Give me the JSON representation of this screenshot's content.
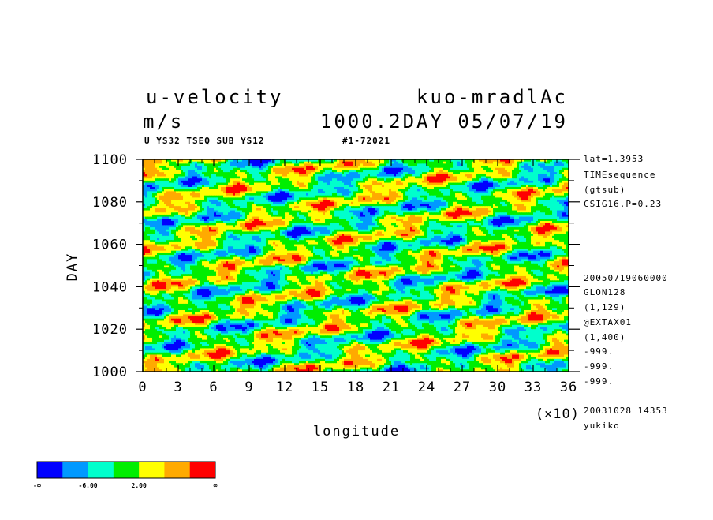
{
  "header": {
    "title_left": "u-velocity",
    "title_right": "kuo-mradlAc",
    "units": "m/s",
    "time_info": "1000.2DAY 05/07/19",
    "sub_left": "U YS32 TSEQ SUB YS12",
    "sub_right": "#1-72021"
  },
  "side_info": [
    "lat=1.3953",
    "TIMEsequence",
    "(gtsub)",
    "CSIG16.P=0.23",
    "20050719060000",
    "GLON128",
    "(1,129)",
    "@EXTAX01",
    "(1,400)",
    "-999.",
    "-999.",
    "-999.",
    "20031028  14353",
    "yukiko"
  ],
  "chart_data": {
    "type": "heatmap",
    "xlabel": "longitude",
    "ylabel": "DAY",
    "x_multiplier_label": "(×10)",
    "x_ticks": [
      "0",
      "3",
      "6",
      "9",
      "12",
      "15",
      "18",
      "21",
      "24",
      "27",
      "30",
      "33",
      "36"
    ],
    "y_ticks": [
      "1000",
      "1020",
      "1040",
      "1060",
      "1080",
      "1100"
    ],
    "xlim": [
      0,
      360
    ],
    "ylim": [
      1000,
      1100
    ],
    "colorbar": {
      "colors": [
        "#0000ff",
        "#0099ff",
        "#00ffcc",
        "#00ee00",
        "#ffff00",
        "#ffaa00",
        "#ff0000"
      ],
      "labels": [
        "-∞",
        "-6.00",
        "2.00",
        "∞"
      ]
    }
  }
}
